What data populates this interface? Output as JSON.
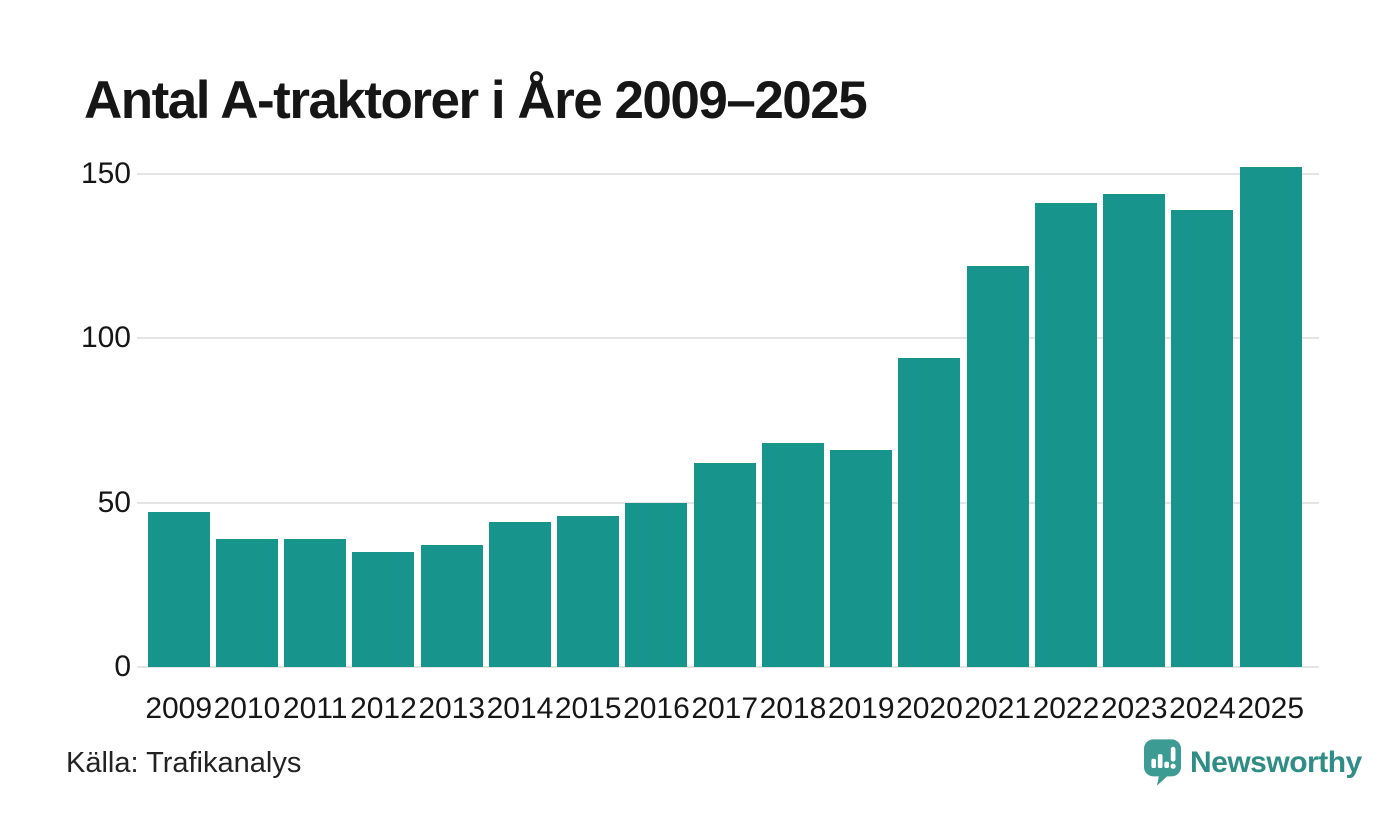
{
  "title": "Antal A-traktorer i Åre 2009–2025",
  "source": "Källa: Trafikanalys",
  "branding": {
    "wordmark": "Newsworthy",
    "icon": "newsworthy-pin-barchart-icon",
    "icon_color": "#3c9c94",
    "wordmark_color": "#2f8d86"
  },
  "colors": {
    "bar": "#17948b",
    "gridline": "#e4e4e4",
    "title_text": "#161616",
    "axis_text": "#161616",
    "background": "#ffffff"
  },
  "chart_data": {
    "type": "bar",
    "title": "Antal A-traktorer i Åre 2009–2025",
    "categories": [
      "2009",
      "2010",
      "2011",
      "2012",
      "2013",
      "2014",
      "2015",
      "2016",
      "2017",
      "2018",
      "2019",
      "2020",
      "2021",
      "2022",
      "2023",
      "2024",
      "2025"
    ],
    "values": [
      47,
      39,
      39,
      35,
      37,
      44,
      46,
      50,
      62,
      68,
      66,
      94,
      122,
      141,
      144,
      139,
      152
    ],
    "xlabel": "",
    "ylabel": "",
    "ylim": [
      0,
      160
    ],
    "yticks": [
      0,
      50,
      100,
      150
    ],
    "grid": true,
    "legend": false,
    "bar_color": "#17948b"
  }
}
